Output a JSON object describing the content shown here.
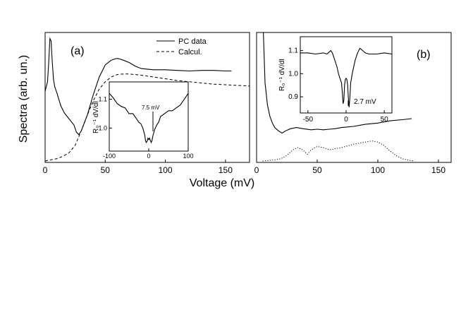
{
  "figure": {
    "ylabel": "Spectra (arb. un.)",
    "xlabel": "Voltage (mV)"
  },
  "chart_data": [
    {
      "type": "line",
      "panel_label": "(a)",
      "xlim": [
        0,
        170
      ],
      "xticks": [
        0,
        50,
        100,
        150
      ],
      "legend_position": "top-right",
      "series": [
        {
          "name": "PC data",
          "style": "solid",
          "x": [
            0,
            2,
            3,
            4,
            5,
            6,
            7,
            8,
            10,
            13,
            16,
            20,
            24,
            26,
            28,
            30,
            35,
            40,
            45,
            50,
            55,
            58,
            60,
            62,
            65,
            70,
            75,
            80,
            90,
            100,
            110,
            120,
            130,
            140,
            150,
            155
          ],
          "y": [
            0.58,
            0.66,
            0.82,
            1.02,
            1.0,
            0.82,
            0.68,
            0.62,
            0.56,
            0.46,
            0.4,
            0.35,
            0.3,
            0.24,
            0.22,
            0.25,
            0.38,
            0.55,
            0.7,
            0.8,
            0.84,
            0.85,
            0.855,
            0.85,
            0.84,
            0.82,
            0.79,
            0.77,
            0.76,
            0.76,
            0.755,
            0.75,
            0.755,
            0.755,
            0.75,
            0.75
          ]
        },
        {
          "name": "Calcul.",
          "style": "dashed",
          "x": [
            0,
            5,
            10,
            15,
            20,
            25,
            30,
            35,
            40,
            45,
            50,
            55,
            60,
            65,
            70,
            75,
            80,
            90,
            100,
            110,
            120,
            130,
            140,
            150,
            160,
            170
          ],
          "y": [
            0.0,
            0.01,
            0.02,
            0.04,
            0.07,
            0.13,
            0.25,
            0.38,
            0.5,
            0.6,
            0.66,
            0.7,
            0.72,
            0.725,
            0.725,
            0.72,
            0.715,
            0.7,
            0.685,
            0.67,
            0.66,
            0.65,
            0.64,
            0.635,
            0.63,
            0.625
          ]
        }
      ],
      "inset": {
        "type": "line",
        "xlim": [
          -100,
          100
        ],
        "xticks": [
          -100,
          0,
          100
        ],
        "ylim": [
          0.92,
          1.16
        ],
        "yticks": [
          1.0,
          1.1
        ],
        "ytick_labels": [
          "1.0",
          "1.1"
        ],
        "ylabel": "R₀⁻¹ dV/dI",
        "annotation": "7.5 mV",
        "annotation_x": 7.5,
        "x": [
          -100,
          -90,
          -80,
          -70,
          -60,
          -50,
          -40,
          -30,
          -25,
          -20,
          -15,
          -10,
          -8,
          -6,
          -4,
          -2,
          0,
          2,
          4,
          6,
          8,
          10,
          15,
          20,
          25,
          30,
          40,
          50,
          60,
          70,
          80,
          90,
          100
        ],
        "y": [
          1.12,
          1.105,
          1.085,
          1.075,
          1.07,
          1.05,
          1.05,
          1.03,
          1.02,
          1.015,
          1.0,
          0.975,
          0.955,
          0.95,
          0.955,
          0.965,
          0.96,
          0.965,
          0.958,
          0.95,
          0.955,
          0.97,
          0.995,
          1.01,
          1.02,
          1.04,
          1.05,
          1.06,
          1.06,
          1.07,
          1.08,
          1.1,
          1.12
        ]
      }
    },
    {
      "type": "line",
      "panel_label": "(b)",
      "xlim": [
        0,
        150
      ],
      "xticks": [
        0,
        50,
        100,
        150
      ],
      "series": [
        {
          "style": "solid",
          "x": [
            5,
            7,
            9,
            11,
            13,
            15,
            18,
            21,
            24,
            28,
            33,
            38,
            45,
            50,
            55,
            60,
            65,
            70,
            75,
            80,
            90,
            100,
            110,
            120,
            128
          ],
          "y": [
            1.35,
            0.7,
            0.5,
            0.4,
            0.34,
            0.3,
            0.27,
            0.25,
            0.27,
            0.29,
            0.3,
            0.29,
            0.28,
            0.285,
            0.28,
            0.285,
            0.29,
            0.3,
            0.305,
            0.31,
            0.33,
            0.34,
            0.36,
            0.37,
            0.38
          ]
        },
        {
          "style": "dotted",
          "x": [
            5,
            10,
            15,
            20,
            25,
            30,
            34,
            38,
            42,
            45,
            50,
            55,
            60,
            70,
            80,
            90,
            95,
            100,
            105,
            110,
            115,
            120,
            125,
            130
          ],
          "y": [
            0.0,
            0.005,
            0.01,
            0.02,
            0.05,
            0.1,
            0.12,
            0.1,
            0.06,
            0.1,
            0.13,
            0.12,
            0.1,
            0.12,
            0.15,
            0.17,
            0.18,
            0.17,
            0.14,
            0.09,
            0.05,
            0.02,
            0.008,
            0.0
          ]
        }
      ],
      "inset": {
        "type": "line",
        "xlim": [
          -60,
          60
        ],
        "xticks": [
          -50,
          0,
          50
        ],
        "ylim": [
          0.83,
          1.16
        ],
        "yticks": [
          0.9,
          1.0,
          1.1
        ],
        "ytick_labels": [
          "0.9",
          "1.0",
          "1.1"
        ],
        "ylabel": "R₀⁻¹ dV/dI",
        "annotation": "2.7 mV",
        "annotation_x": 2.7,
        "x": [
          -60,
          -50,
          -40,
          -30,
          -25,
          -20,
          -18,
          -15,
          -12,
          -10,
          -8,
          -6,
          -5,
          -4,
          -3,
          -2,
          -1,
          0,
          1,
          2,
          3,
          4,
          5,
          6,
          8,
          10,
          12,
          15,
          18,
          20,
          25,
          30,
          40,
          50,
          60
        ],
        "y": [
          1.09,
          1.09,
          1.085,
          1.09,
          1.085,
          1.1,
          1.09,
          1.06,
          1.03,
          1.0,
          0.98,
          0.96,
          0.92,
          0.87,
          0.885,
          0.95,
          0.975,
          0.98,
          0.975,
          0.95,
          0.89,
          0.855,
          0.9,
          0.96,
          1.0,
          1.03,
          1.06,
          1.09,
          1.11,
          1.105,
          1.09,
          1.085,
          1.085,
          1.09,
          1.085
        ]
      }
    }
  ]
}
